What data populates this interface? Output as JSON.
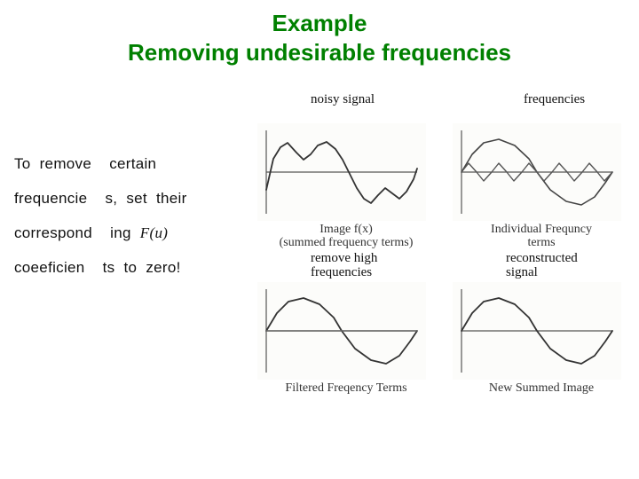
{
  "title_line1": "Example",
  "title_line2": "Removing undesirable frequencies",
  "left_text": {
    "r1a": "To  remove",
    "r1b": "certain",
    "r2a": "frequencie",
    "r2b": "s,  set  their",
    "r3a": "correspond",
    "r3b": "ing  ",
    "r4a": "coeeficien",
    "r4b": "ts  to  zero!",
    "formula": "F(u)"
  },
  "labels": {
    "tl": "noisy signal",
    "tr": "frequencies",
    "bl1": "remove high",
    "bl2": "frequencies",
    "br1": "reconstructed",
    "br2": "signal"
  },
  "captions": {
    "tl1": "Image f(x)",
    "tl2": "(summed frequency terms)",
    "tr1": "Individual Frequncy",
    "tr2": "terms",
    "bl": "Filtered Freqency Terms",
    "br": "New Summed Image"
  },
  "axis": {
    "w": 190,
    "h": 110,
    "originX": 10,
    "originY": 55,
    "plotW": 170,
    "stroke": "#555555",
    "stroke_w": 1.2
  },
  "series": {
    "noisy": {
      "stroke": "#333333",
      "w": 1.8,
      "points": [
        [
          0,
          20
        ],
        [
          8,
          -15
        ],
        [
          16,
          -28
        ],
        [
          24,
          -33
        ],
        [
          34,
          -22
        ],
        [
          42,
          -14
        ],
        [
          50,
          -20
        ],
        [
          58,
          -30
        ],
        [
          68,
          -34
        ],
        [
          78,
          -26
        ],
        [
          86,
          -14
        ],
        [
          94,
          2
        ],
        [
          102,
          18
        ],
        [
          110,
          30
        ],
        [
          118,
          35
        ],
        [
          126,
          26
        ],
        [
          134,
          18
        ],
        [
          142,
          24
        ],
        [
          150,
          30
        ],
        [
          158,
          22
        ],
        [
          166,
          8
        ],
        [
          170,
          -4
        ]
      ]
    },
    "freq_low": {
      "stroke": "#444444",
      "w": 1.6,
      "points": [
        [
          0,
          0
        ],
        [
          12,
          -20
        ],
        [
          25,
          -33
        ],
        [
          42,
          -37
        ],
        [
          60,
          -30
        ],
        [
          76,
          -15
        ],
        [
          85,
          0
        ],
        [
          100,
          20
        ],
        [
          118,
          33
        ],
        [
          135,
          37
        ],
        [
          150,
          28
        ],
        [
          162,
          12
        ],
        [
          170,
          0
        ]
      ]
    },
    "freq_high": {
      "stroke": "#555555",
      "w": 1.4,
      "points": [
        [
          0,
          0
        ],
        [
          8,
          -10
        ],
        [
          17,
          0
        ],
        [
          25,
          10
        ],
        [
          34,
          0
        ],
        [
          42,
          -10
        ],
        [
          51,
          0
        ],
        [
          59,
          10
        ],
        [
          68,
          0
        ],
        [
          76,
          -10
        ],
        [
          85,
          0
        ],
        [
          93,
          10
        ],
        [
          102,
          0
        ],
        [
          110,
          -10
        ],
        [
          119,
          0
        ],
        [
          127,
          10
        ],
        [
          136,
          0
        ],
        [
          144,
          -10
        ],
        [
          153,
          0
        ],
        [
          161,
          10
        ],
        [
          170,
          0
        ]
      ]
    },
    "filtered": {
      "stroke": "#333333",
      "w": 1.8,
      "points": [
        [
          0,
          0
        ],
        [
          12,
          -20
        ],
        [
          25,
          -33
        ],
        [
          42,
          -37
        ],
        [
          60,
          -30
        ],
        [
          76,
          -15
        ],
        [
          85,
          0
        ],
        [
          100,
          20
        ],
        [
          118,
          33
        ],
        [
          135,
          37
        ],
        [
          150,
          28
        ],
        [
          162,
          12
        ],
        [
          170,
          0
        ]
      ]
    },
    "flat": {
      "stroke": "#666666",
      "w": 1.4,
      "points": [
        [
          0,
          0
        ],
        [
          170,
          0
        ]
      ]
    },
    "recon": {
      "stroke": "#333333",
      "w": 1.8,
      "points": [
        [
          0,
          0
        ],
        [
          12,
          -20
        ],
        [
          25,
          -33
        ],
        [
          42,
          -37
        ],
        [
          60,
          -30
        ],
        [
          76,
          -15
        ],
        [
          85,
          0
        ],
        [
          100,
          20
        ],
        [
          118,
          33
        ],
        [
          135,
          37
        ],
        [
          150,
          28
        ],
        [
          162,
          12
        ],
        [
          170,
          0
        ]
      ]
    }
  }
}
